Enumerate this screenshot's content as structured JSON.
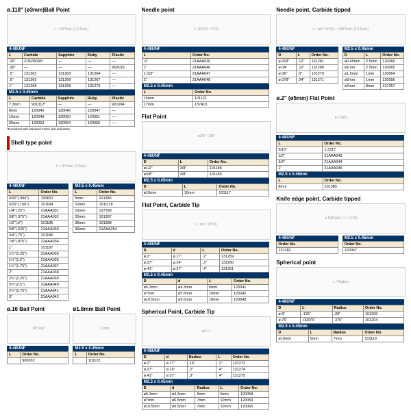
{
  "colors": {
    "header_bg": "#003366",
    "header_fg": "#ffffff",
    "th_bg": "#f5e8d0",
    "border": "#888888",
    "red": "#cc0000"
  },
  "fonts": {
    "title_size": 8,
    "body_size": 5.5
  },
  "sections": {
    "ball_point_3mm": {
      "title": "ø.118\" (ø3mm)Ball Point",
      "diagram_label": "L / .04\"Rad. (1,0 Rad.)",
      "t1_header": "4-48UNF",
      "t1_cols": [
        "L",
        "Carbide",
        "Sapphire",
        "Ruby",
        "Plastic"
      ],
      "t1_rows": [
        [
          ".25\"",
          "21BZB005*",
          "—",
          "—",
          "—"
        ],
        [
          ".28\"",
          "—",
          "—",
          "—",
          "902018"
        ],
        [
          ".5\"",
          "131262",
          "131263",
          "131264",
          "—"
        ],
        [
          ".6\"",
          "131265",
          "131266",
          "131267",
          "—"
        ],
        [
          "1\"",
          "131268",
          "131269",
          "131270",
          "—"
        ]
      ],
      "t2_header": "M2.5 x 0.45mm",
      "t2_cols": [
        "L",
        "Carbide",
        "Sapphire",
        "Ruby",
        "Plastic"
      ],
      "t2_rows": [
        [
          "7.3mm",
          "901312*",
          "—",
          "—",
          "901994"
        ],
        [
          "8mm",
          "120045",
          "120046",
          "120047",
          "—"
        ],
        [
          "15mm",
          "120049",
          "120050",
          "120051",
          "—"
        ],
        [
          "25mm",
          "120053",
          "120054",
          "120055",
          "—"
        ]
      ],
      "footnote": "*Furnished with standard metric dial indicators"
    },
    "shell_type": {
      "title": "Shell type point",
      "diagram_label": "L / 16°Rad. (4 Rad.)",
      "t1_header": "4-48UNF",
      "t1_cols": [
        "L",
        "Order No."
      ],
      "t1_rows": [
        [
          "3/32\"(.094\")",
          "193697"
        ],
        [
          "5/32\"(.156\")",
          "101184"
        ],
        [
          "1/4\"(.25\")",
          "21AAA031"
        ],
        [
          "3/8\"(.375\")",
          "21AAA032"
        ],
        [
          "1/2\"(.5\")",
          "101185"
        ],
        [
          "5/8\"(.625\")",
          "21AAA033"
        ],
        [
          "3/4\"(.75\")",
          "101186"
        ],
        [
          "7/8\"(.875\")",
          "21AAA034"
        ],
        [
          "1\"",
          "101187"
        ],
        [
          "1¼\"(1.25\")",
          "21AAA035"
        ],
        [
          "1½\"(1.5\")",
          "21AAA036"
        ],
        [
          "1¾\"(1.75\")",
          "21AAA037"
        ],
        [
          "2\"",
          "21AAA038"
        ],
        [
          "2¼\"(2.25\")",
          "21AAA039"
        ],
        [
          "2½\"(2.5\")",
          "21AAA040"
        ],
        [
          "2¾\"(2.75\")",
          "21AAA041"
        ],
        [
          "3\"",
          "21AAA042"
        ]
      ],
      "t2_header": "M2.5 x 0.45mm",
      "t2_cols": [
        "L",
        "Order No."
      ],
      "t2_rows": [
        [
          "5mm",
          "101386"
        ],
        [
          "10mm",
          "101111b"
        ],
        [
          "15mm",
          "137398"
        ],
        [
          "20mm",
          "101387"
        ],
        [
          "30mm",
          "101388"
        ],
        [
          "30mm",
          "21AAA254"
        ]
      ]
    },
    "ball_16": {
      "title": "ø.16 Ball Point",
      "diagram_label": ".08\"Rad.",
      "t1_header": "4-48UNF",
      "t1_cols": [
        "L",
        "Order No."
      ],
      "t1_rows": [
        [
          "",
          "900032"
        ]
      ]
    },
    "ball_18": {
      "title": "ø1.8mm Ball Point",
      "diagram_label": "7.3mm",
      "t1_header": "M2.5 x 0.45mm",
      "t1_cols": [
        "L",
        "Order No."
      ],
      "t1_rows": [
        [
          "",
          "101122"
        ]
      ]
    },
    "needle": {
      "title": "Needle point",
      "diagram_label": "L / 40°(S) / 2\"(S)",
      "t1_header": "4-48UNF",
      "t1_cols": [
        "L",
        "Order No."
      ],
      "t1_rows": [
        [
          ".6\"",
          "21AAA030"
        ],
        [
          "1\"",
          "21AAA046"
        ],
        [
          "1-1/2\"",
          "21AAA047"
        ],
        [
          "2\"",
          "21AAA048"
        ]
      ],
      "t2_header": "M2.5 x 0.45mm",
      "t2_cols": [
        "L",
        "Order No."
      ],
      "t2_rows": [
        [
          "15mm",
          "101121"
        ],
        [
          "17mm",
          "137413"
        ]
      ]
    },
    "flat": {
      "title": "Flat Point",
      "diagram_label": "ø3/8\" / 3/8\"",
      "t1_header": "4-48UNF",
      "t1_cols": [
        "D",
        "L",
        "Order No."
      ],
      "t1_rows": [
        [
          "ø1/2\"",
          "3/8\"",
          "101188"
        ],
        [
          "ø3/8\"",
          "3/8\"",
          "101189"
        ]
      ],
      "t2_header": "M2.5 x 0.45mm",
      "t2_cols": [
        "D",
        "L",
        "Order No."
      ],
      "t2_rows": [
        [
          "ø10mm",
          "10mm",
          "101117"
        ]
      ]
    },
    "flat_carbide": {
      "title": "Flat Point, Carbide Tip",
      "diagram_label": "L / ød / .08\"(3)",
      "t1_header": "4-48UNF",
      "t1_cols": [
        "D",
        "d",
        "L",
        "Order No."
      ],
      "t1_rows": [
        [
          "ø.2\"",
          "ø.17\"",
          ".2\"",
          "131259"
        ],
        [
          "ø.27\"",
          "ø.24\"",
          ".3\"",
          "131260"
        ],
        [
          "ø.41\"",
          "ø.37\"",
          ".4\"",
          "131261"
        ]
      ],
      "t2_header": "M2.5 x 0.45mm",
      "t2_cols": [
        "D",
        "d",
        "L",
        "Order No."
      ],
      "t2_rows": [
        [
          "ø5.2mm",
          "ø4.3mm",
          "5mm",
          "120041"
        ],
        [
          "ø7mm",
          "ø5.5mm",
          "10mm",
          "120042"
        ],
        [
          "ø10.5mm",
          "ø9.5mm",
          "10mm",
          "120043"
        ]
      ]
    },
    "spherical_carbide": {
      "title": "Spherical Point, Carbide Tip",
      "diagram_label": "ød / L",
      "t1_header": "4-48UNF",
      "t1_cols": [
        "D",
        "d",
        "Radius",
        "L",
        "Order No."
      ],
      "t1_rows": [
        [
          "ø.2\"",
          "ø.17\"",
          ".16\"",
          ".2\"",
          "131273"
        ],
        [
          "ø.27\"",
          "ø.16\"",
          ".2\"",
          ".4\"",
          "131274"
        ],
        [
          "ø.41\"",
          "ø.37\"",
          ".3\"",
          ".4\"",
          "131275"
        ]
      ],
      "t2_header": "M2.5 x 0.45mm",
      "t2_cols": [
        "D",
        "d",
        "Radius",
        "L",
        "Order No."
      ],
      "t2_rows": [
        [
          "ø5.2mm",
          "ø4.3mm",
          "5mm",
          "5mm",
          "120058"
        ],
        [
          "ø7mm",
          "ø6.5mm",
          "7mm",
          "10mm",
          "120059"
        ],
        [
          "ø10.5mm",
          "ø9.5mm",
          "7mm",
          "10mm",
          "120060"
        ]
      ]
    },
    "needle_carbide": {
      "title": "Needle point, Carbide tipped",
      "diagram_label": "L / ød / 40°(S) / .008\"Rad. (0.4 Rad.)",
      "t1_header": "4-48UNF",
      "t1_cols": [
        "D",
        "L",
        "Order No."
      ],
      "t1_rows": [
        [
          "ø.018\"",
          ".12\"",
          "131281"
        ],
        [
          "ø.04\"",
          ".12\"",
          "131280"
        ],
        [
          "ø.06\"",
          ".5\"",
          "131279"
        ],
        [
          "ø.078\"",
          ".04\"",
          "131271"
        ]
      ],
      "t2_header": "M2.5 x 0.45mm",
      "t2_cols": [
        "D",
        "L",
        "Order No."
      ],
      "t2_rows": [
        [
          "ø0.45mm",
          "2.5mm",
          "120066"
        ],
        [
          "ø1mm",
          "2.5mm",
          "120065"
        ],
        [
          "ø1.5mm",
          "1mm",
          "120064"
        ],
        [
          "ø2mm",
          "1mm",
          "120056"
        ],
        [
          "ø2mm",
          "8mm",
          "137257"
        ]
      ]
    },
    "flat_5mm": {
      "title": "ø.2\" (ø5mm) Flat Point",
      "diagram_label": "ø.2\"(ø5)",
      "t1_header": "4-48UNF",
      "t1_cols": [
        "L",
        "Order No."
      ],
      "t1_rows": [
        [
          "5/16\"",
          "1.3317"
        ],
        [
          "1/2\"",
          "21AAA043"
        ],
        [
          "3/4\"",
          "21AAA044"
        ],
        [
          "1\"",
          "21AAA045"
        ]
      ],
      "t2_header": "M2.5 x 0.45mm",
      "t2_cols": [
        "L",
        "Order No."
      ],
      "t2_rows": [
        [
          "8mm",
          "101385"
        ]
      ]
    },
    "knife": {
      "title": "Knife edge point, Carbide tipped",
      "diagram_label": "ø.118\"(ø3) / L / 1\"(15)",
      "t1_header": "4-48UNF",
      "t1_cols": [
        "Order No."
      ],
      "t1_rows": [
        [
          "131282"
        ]
      ],
      "t2_header": "M2.5 x 0.45mm",
      "t2_cols": [
        "Order No."
      ],
      "t2_rows": [
        [
          "120067"
        ]
      ]
    },
    "spherical": {
      "title": "Spherical point",
      "diagram_label": "L / Radius",
      "t1_header": "4-48UNF",
      "t1_cols": [
        "D",
        "L",
        "Radius",
        "Order No."
      ],
      "t1_rows": [
        [
          "ø.5\"",
          ".125\"",
          ".28\"",
          "101205"
        ],
        [
          "ø.75\"",
          ".09375\"",
          ".375\"",
          "101204"
        ]
      ],
      "t2_header": "M2.5 x 0.45mm",
      "t2_cols": [
        "D",
        "L",
        "Radius",
        "Order No."
      ],
      "t2_rows": [
        [
          "ø10mm",
          "5mm",
          "7mm",
          "101119"
        ]
      ]
    }
  }
}
